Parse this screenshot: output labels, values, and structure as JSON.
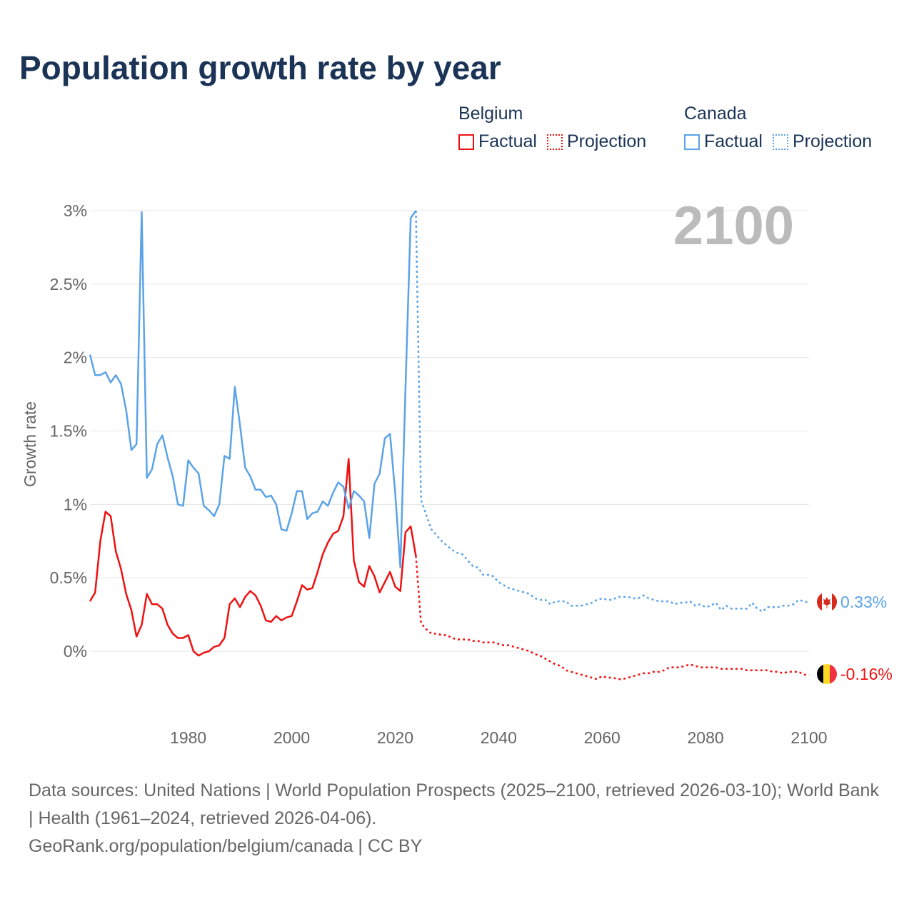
{
  "title": "Population growth rate by year",
  "legend": {
    "groups": [
      {
        "name": "Belgium",
        "color": "#ee1111",
        "items": [
          "Factual",
          "Projection"
        ]
      },
      {
        "name": "Canada",
        "color": "#5ba3e8",
        "items": [
          "Factual",
          "Projection"
        ]
      }
    ]
  },
  "year_watermark": "2100",
  "end_labels": {
    "canada": "0.33%",
    "belgium": "-0.16%"
  },
  "footer": {
    "sources": "Data sources: United Nations | World Population Prospects (2025–2100, retrieved 2026-03-10); World Bank | Health (1961–2024, retrieved 2026-04-06).",
    "credit": "GeoRank.org/population/belgium/canada | CC BY"
  },
  "chart_data": {
    "type": "line",
    "title": "Population growth rate by year",
    "xlabel": "",
    "ylabel": "Growth rate",
    "xlim": [
      1961,
      2100
    ],
    "ylim": [
      -0.3,
      3.0
    ],
    "x_ticks": [
      "1980",
      "2000",
      "2020",
      "2040",
      "2060",
      "2080",
      "2100"
    ],
    "y_ticks": [
      {
        "v": 0,
        "label": "0%"
      },
      {
        "v": 0.5,
        "label": "0.5%"
      },
      {
        "v": 1,
        "label": "1%"
      },
      {
        "v": 1.5,
        "label": "1.5%"
      },
      {
        "v": 2,
        "label": "2%"
      },
      {
        "v": 2.5,
        "label": "2.5%"
      },
      {
        "v": 3,
        "label": "3%"
      }
    ],
    "grid": true,
    "legend_position": "top-right",
    "factual_start": 1961,
    "projection_start": 2025,
    "series": [
      {
        "name": "Belgium",
        "color": "#ee1111",
        "factual": [
          0.34,
          0.4,
          0.75,
          0.95,
          0.92,
          0.68,
          0.56,
          0.39,
          0.28,
          0.1,
          0.18,
          0.39,
          0.32,
          0.32,
          0.29,
          0.18,
          0.12,
          0.09,
          0.09,
          0.11,
          0.0,
          -0.03,
          -0.01,
          0.0,
          0.03,
          0.04,
          0.09,
          0.32,
          0.36,
          0.3,
          0.37,
          0.41,
          0.38,
          0.31,
          0.21,
          0.2,
          0.24,
          0.21,
          0.23,
          0.24,
          0.34,
          0.45,
          0.42,
          0.43,
          0.54,
          0.66,
          0.74,
          0.8,
          0.82,
          0.92,
          1.31,
          0.62,
          0.47,
          0.44,
          0.58,
          0.51,
          0.4,
          0.47,
          0.54,
          0.44,
          0.41,
          0.81,
          0.85,
          0.65
        ],
        "projection": [
          0.19,
          0.15,
          0.12,
          0.12,
          0.11,
          0.11,
          0.09,
          0.08,
          0.08,
          0.08,
          0.07,
          0.07,
          0.06,
          0.06,
          0.06,
          0.05,
          0.04,
          0.04,
          0.03,
          0.02,
          0.01,
          0.0,
          -0.02,
          -0.03,
          -0.05,
          -0.07,
          -0.09,
          -0.1,
          -0.13,
          -0.14,
          -0.15,
          -0.16,
          -0.17,
          -0.18,
          -0.19,
          -0.17,
          -0.18,
          -0.18,
          -0.19,
          -0.19,
          -0.18,
          -0.17,
          -0.16,
          -0.15,
          -0.15,
          -0.14,
          -0.14,
          -0.13,
          -0.11,
          -0.11,
          -0.11,
          -0.1,
          -0.09,
          -0.1,
          -0.11,
          -0.11,
          -0.11,
          -0.11,
          -0.12,
          -0.12,
          -0.12,
          -0.12,
          -0.12,
          -0.13,
          -0.13,
          -0.13,
          -0.13,
          -0.13,
          -0.14,
          -0.14,
          -0.15,
          -0.14,
          -0.14,
          -0.14,
          -0.16,
          -0.16
        ]
      },
      {
        "name": "Canada",
        "color": "#5ba3e8",
        "factual": [
          2.02,
          1.88,
          1.88,
          1.9,
          1.83,
          1.88,
          1.82,
          1.64,
          1.37,
          1.41,
          2.99,
          1.18,
          1.24,
          1.41,
          1.47,
          1.32,
          1.19,
          1.0,
          0.99,
          1.3,
          1.25,
          1.21,
          0.99,
          0.96,
          0.92,
          1.0,
          1.33,
          1.31,
          1.8,
          1.54,
          1.25,
          1.19,
          1.1,
          1.1,
          1.05,
          1.06,
          1.0,
          0.83,
          0.82,
          0.94,
          1.09,
          1.09,
          0.9,
          0.94,
          0.95,
          1.02,
          0.99,
          1.08,
          1.15,
          1.12,
          0.97,
          1.09,
          1.06,
          1.02,
          0.77,
          1.14,
          1.21,
          1.45,
          1.48,
          1.08,
          0.57,
          1.8,
          2.95,
          3.0
        ],
        "projection": [
          1.03,
          0.93,
          0.83,
          0.79,
          0.75,
          0.72,
          0.69,
          0.67,
          0.66,
          0.62,
          0.58,
          0.57,
          0.52,
          0.52,
          0.51,
          0.47,
          0.45,
          0.43,
          0.42,
          0.41,
          0.4,
          0.39,
          0.36,
          0.35,
          0.35,
          0.32,
          0.34,
          0.34,
          0.34,
          0.31,
          0.31,
          0.31,
          0.32,
          0.33,
          0.35,
          0.36,
          0.35,
          0.35,
          0.37,
          0.37,
          0.37,
          0.36,
          0.36,
          0.38,
          0.36,
          0.35,
          0.34,
          0.34,
          0.34,
          0.32,
          0.33,
          0.33,
          0.34,
          0.31,
          0.32,
          0.3,
          0.31,
          0.33,
          0.28,
          0.31,
          0.29,
          0.29,
          0.29,
          0.29,
          0.33,
          0.29,
          0.27,
          0.3,
          0.3,
          0.3,
          0.31,
          0.31,
          0.32,
          0.35,
          0.34,
          0.33
        ]
      }
    ]
  }
}
